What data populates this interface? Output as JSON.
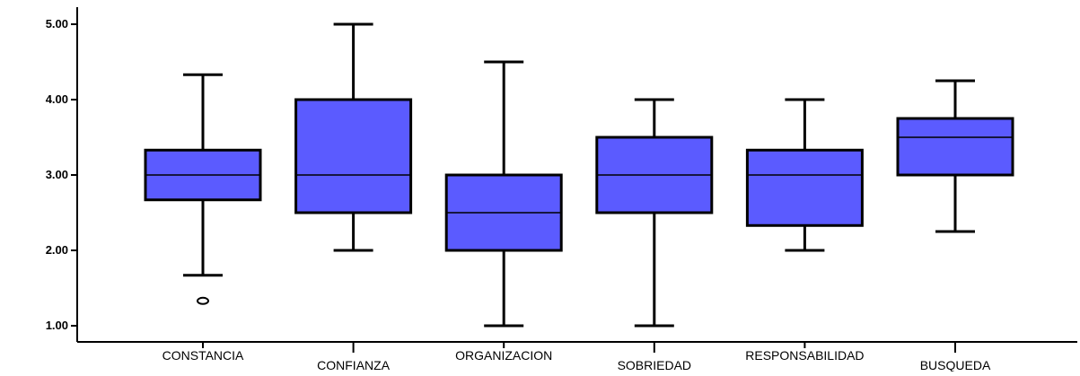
{
  "chart_data": {
    "type": "boxplot",
    "title": "",
    "xlabel": "",
    "ylabel": "",
    "ylim": [
      0.75,
      5.25
    ],
    "y_ticks": [
      "1.00",
      "2.00",
      "3.00",
      "4.00",
      "5.00"
    ],
    "categories": [
      "CONSTANCIA",
      "CONFIANZA",
      "ORGANIZACION",
      "SOBRIEDAD",
      "RESPONSABILIDAD",
      "BUSQUEDA"
    ],
    "category_label_row": [
      "top",
      "bottom",
      "top",
      "bottom",
      "top",
      "bottom"
    ],
    "boxes": [
      {
        "min": 1.67,
        "q1": 2.67,
        "median": 3.0,
        "q3": 3.33,
        "max": 4.33,
        "outliers": [
          1.33
        ]
      },
      {
        "min": 2.0,
        "q1": 2.5,
        "median": 3.0,
        "q3": 4.0,
        "max": 5.0,
        "outliers": []
      },
      {
        "min": 1.0,
        "q1": 2.0,
        "median": 2.5,
        "q3": 3.0,
        "max": 4.5,
        "outliers": []
      },
      {
        "min": 1.0,
        "q1": 2.5,
        "median": 3.0,
        "q3": 3.5,
        "max": 4.0,
        "outliers": []
      },
      {
        "min": 2.0,
        "q1": 2.33,
        "median": 3.0,
        "q3": 3.33,
        "max": 4.0,
        "outliers": []
      },
      {
        "min": 2.25,
        "q1": 3.0,
        "median": 3.5,
        "q3": 3.75,
        "max": 4.25,
        "outliers": []
      }
    ],
    "colors": {
      "box_fill": "#5b5bff",
      "stroke": "#000000",
      "median": "#000000",
      "background": "#ffffff"
    },
    "grid": false,
    "legend": "none"
  }
}
